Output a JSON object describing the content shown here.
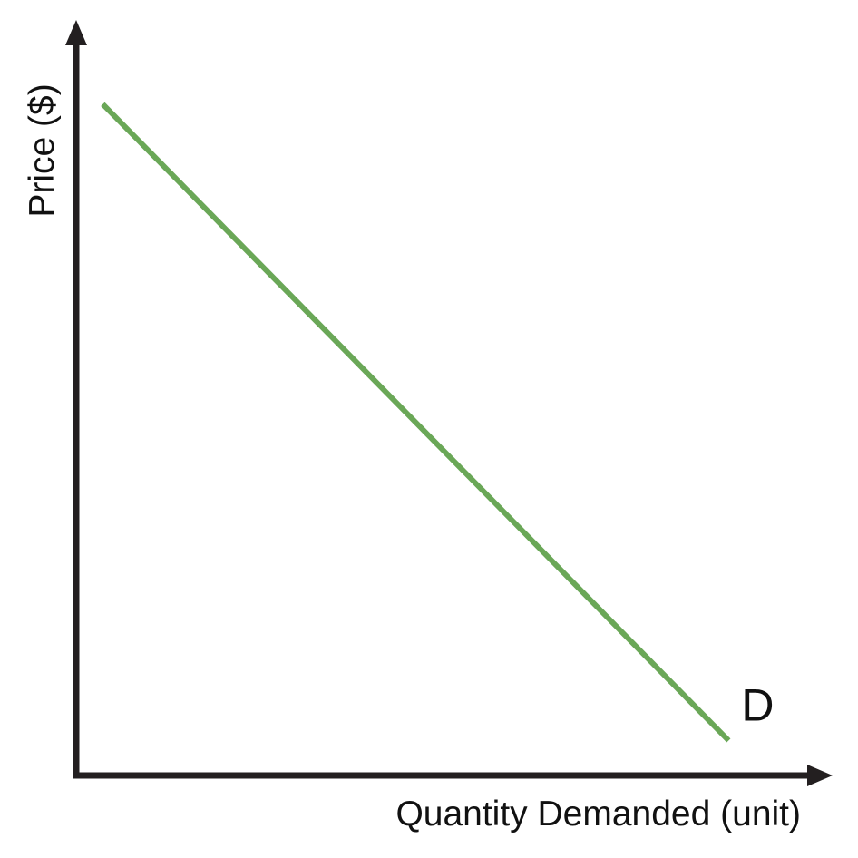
{
  "chart_data": {
    "type": "line",
    "title": "",
    "xlabel": "Quantity Demanded (unit)",
    "ylabel": "Price ($)",
    "ticks": false,
    "grid": false,
    "series": [
      {
        "name": "D",
        "color": "#6aa757",
        "points": [
          {
            "x": 0.04,
            "y": 0.96
          },
          {
            "x": 0.98,
            "y": 0.05
          }
        ]
      }
    ]
  }
}
